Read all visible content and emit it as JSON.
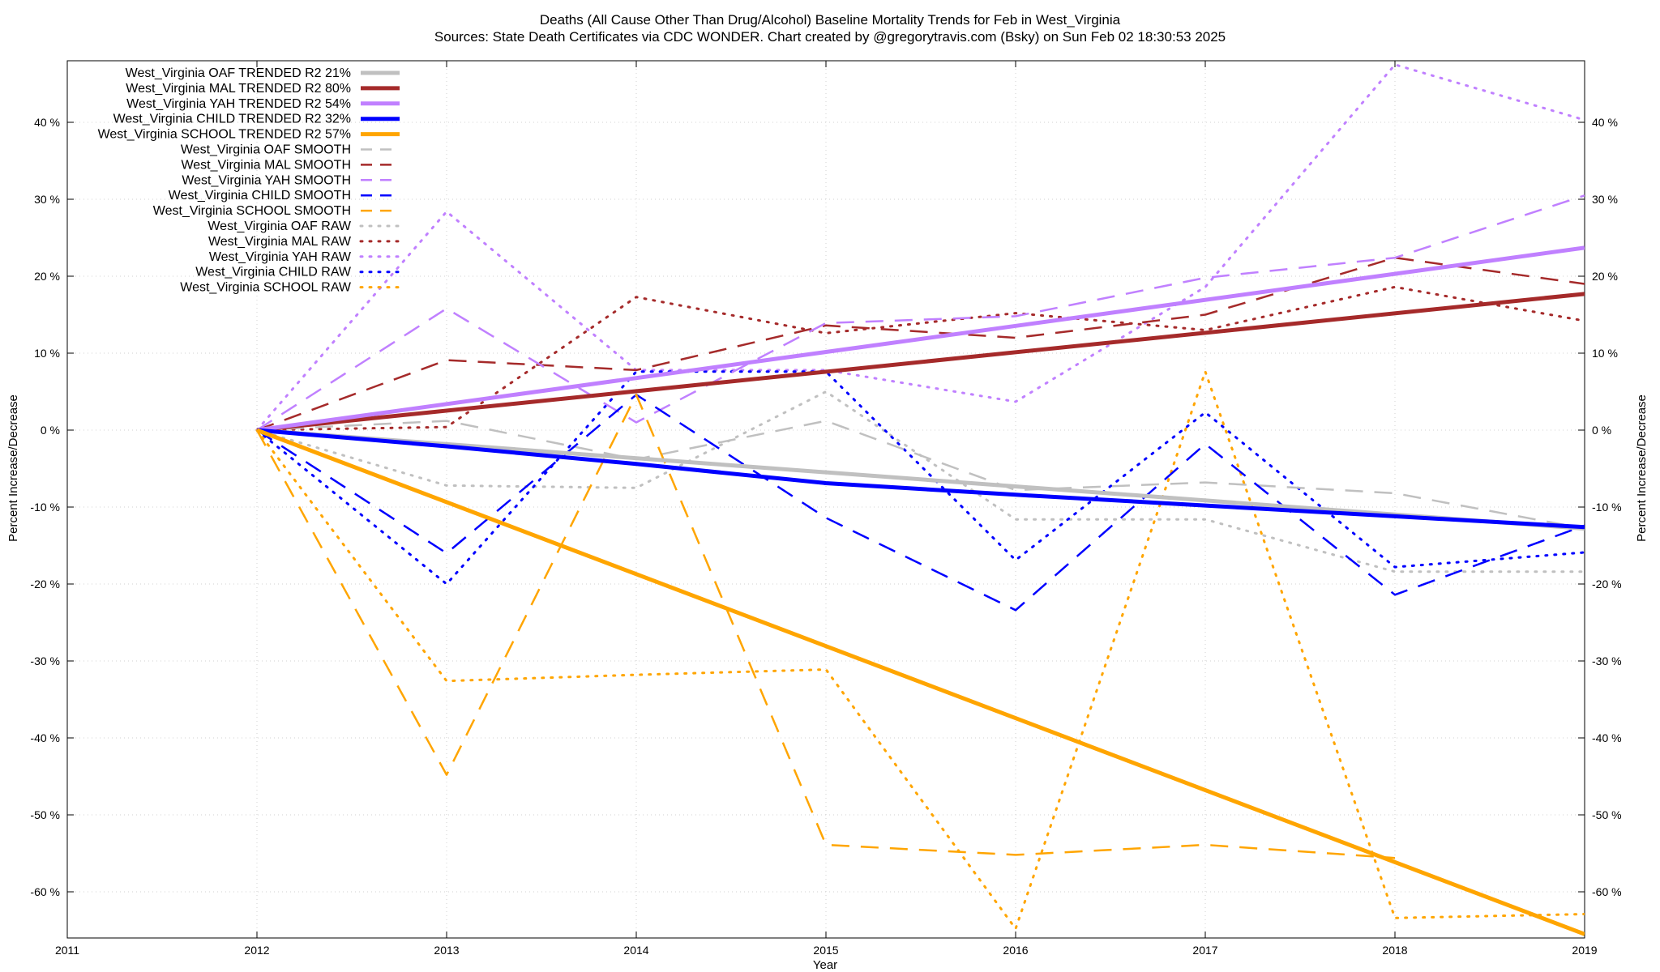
{
  "title_line1": "Deaths (All Cause Other Than Drug/Alcohol)  Baseline Mortality Trends for Feb in West_Virginia",
  "title_line2": "Sources: State Death Certificates via CDC WONDER.               Chart created by @gregorytravis.com (Bsky) on Sun Feb 02 18:30:53 2025",
  "chart_data": {
    "type": "line",
    "xlabel": "Year",
    "ylabel": "Percent Increase/Decrease",
    "xlim": [
      2011,
      2019
    ],
    "ylim": [
      -66,
      48
    ],
    "x_ticks": [
      2011,
      2012,
      2013,
      2014,
      2015,
      2016,
      2017,
      2018,
      2019
    ],
    "x_tick_labels": [
      "2011",
      "2012",
      "2013",
      "2014",
      "2015",
      "2016",
      "2017",
      "2018",
      "2019"
    ],
    "y_ticks": [
      -60,
      -50,
      -40,
      -30,
      -20,
      -10,
      0,
      10,
      20,
      30,
      40
    ],
    "y_tick_labels": [
      "-60 %",
      "-50 %",
      "-40 %",
      "-30 %",
      "-20 %",
      "-10 %",
      "0 %",
      "10 %",
      "20 %",
      "30 %",
      "40 %"
    ],
    "grid": true,
    "legend_position": "top-left",
    "series": [
      {
        "name": "West_Virginia OAF TRENDED R2  21%",
        "style": "trend",
        "color": "#c0c0c0",
        "x": [
          2012,
          2019
        ],
        "values": [
          0,
          -12.8
        ]
      },
      {
        "name": "West_Virginia MAL TRENDED R2  80%",
        "style": "trend",
        "color": "#a52a2a",
        "x": [
          2012,
          2019
        ],
        "values": [
          0,
          17.7
        ]
      },
      {
        "name": "West_Virginia YAH TRENDED R2  54%",
        "style": "trend",
        "color": "#c080ff",
        "x": [
          2012,
          2019
        ],
        "values": [
          0,
          23.7
        ]
      },
      {
        "name": "West_Virginia CHILD TRENDED R2  32%",
        "style": "trend",
        "color": "#0000ff",
        "x": [
          2012,
          2013,
          2014,
          2015,
          2016,
          2017,
          2018,
          2019
        ],
        "values": [
          0,
          -2.1,
          -4.4,
          -6.9,
          -8.4,
          -9.8,
          -11.2,
          -12.6
        ]
      },
      {
        "name": "West_Virginia SCHOOL TRENDED R2  57%",
        "style": "trend",
        "color": "#ffa500",
        "x": [
          2012,
          2019
        ],
        "values": [
          0,
          -65.5
        ]
      },
      {
        "name": "West_Virginia OAF SMOOTH",
        "style": "smooth",
        "color": "#c0c0c0",
        "x": [
          2012,
          2013,
          2014,
          2015,
          2016,
          2017,
          2018,
          2019
        ],
        "values": [
          0,
          1.2,
          -3.8,
          1.2,
          -7.8,
          -6.8,
          -8.2,
          -12.8
        ]
      },
      {
        "name": "West_Virginia MAL SMOOTH",
        "style": "smooth",
        "color": "#a52a2a",
        "x": [
          2012,
          2013,
          2014,
          2015,
          2016,
          2017,
          2018,
          2019
        ],
        "values": [
          0,
          9.1,
          7.8,
          13.6,
          12,
          15,
          22.4,
          19
        ]
      },
      {
        "name": "West_Virginia YAH SMOOTH",
        "style": "smooth",
        "color": "#c080ff",
        "x": [
          2012,
          2013,
          2014,
          2015,
          2016,
          2017,
          2018,
          2019
        ],
        "values": [
          0,
          15.8,
          1,
          13.9,
          14.8,
          19.8,
          22.4,
          30.5
        ]
      },
      {
        "name": "West_Virginia CHILD SMOOTH",
        "style": "smooth",
        "color": "#0000ff",
        "x": [
          2012,
          2013,
          2014,
          2015,
          2016,
          2017,
          2018,
          2019
        ],
        "values": [
          0,
          -16,
          4.6,
          -11.4,
          -23.4,
          -1.8,
          -21.4,
          -12.4
        ]
      },
      {
        "name": "West_Virginia SCHOOL SMOOTH",
        "style": "smooth",
        "color": "#ffa500",
        "x": [
          2012,
          2013,
          2014,
          2015,
          2016,
          2017,
          2018
        ],
        "values": [
          0,
          -44.8,
          4.6,
          -53.9,
          -55.2,
          -53.9,
          -55.6
        ]
      },
      {
        "name": "West_Virginia OAF RAW",
        "style": "raw",
        "color": "#c0c0c0",
        "x": [
          2012,
          2013,
          2014,
          2015,
          2016,
          2017,
          2018,
          2019
        ],
        "values": [
          0,
          -7.2,
          -7.5,
          5,
          -11.6,
          -11.6,
          -18.4,
          -18.4
        ]
      },
      {
        "name": "West_Virginia MAL RAW",
        "style": "raw",
        "color": "#a52a2a",
        "x": [
          2012,
          2013,
          2014,
          2015,
          2016,
          2017,
          2018,
          2019
        ],
        "values": [
          0,
          0.4,
          17.3,
          12.6,
          15.2,
          13,
          18.6,
          14.2
        ]
      },
      {
        "name": "West_Virginia YAH RAW",
        "style": "raw",
        "color": "#c080ff",
        "x": [
          2012,
          2013,
          2014,
          2015,
          2016,
          2017,
          2018,
          2019
        ],
        "values": [
          0,
          28.4,
          7.8,
          7.8,
          3.7,
          18.6,
          47.5,
          40.3
        ]
      },
      {
        "name": "West_Virginia CHILD RAW",
        "style": "raw",
        "color": "#0000ff",
        "x": [
          2012,
          2013,
          2014,
          2015,
          2016,
          2017,
          2018,
          2019
        ],
        "values": [
          0,
          -20,
          7.6,
          7.6,
          -16.9,
          2.3,
          -17.8,
          -15.9
        ]
      },
      {
        "name": "West_Virginia SCHOOL RAW",
        "style": "raw",
        "color": "#ffa500",
        "x": [
          2012,
          2013,
          2014,
          2015,
          2016,
          2017,
          2018,
          2019
        ],
        "values": [
          0,
          -32.6,
          -31.8,
          -31.1,
          -64.8,
          7.6,
          -63.4,
          -62.9
        ]
      }
    ]
  }
}
